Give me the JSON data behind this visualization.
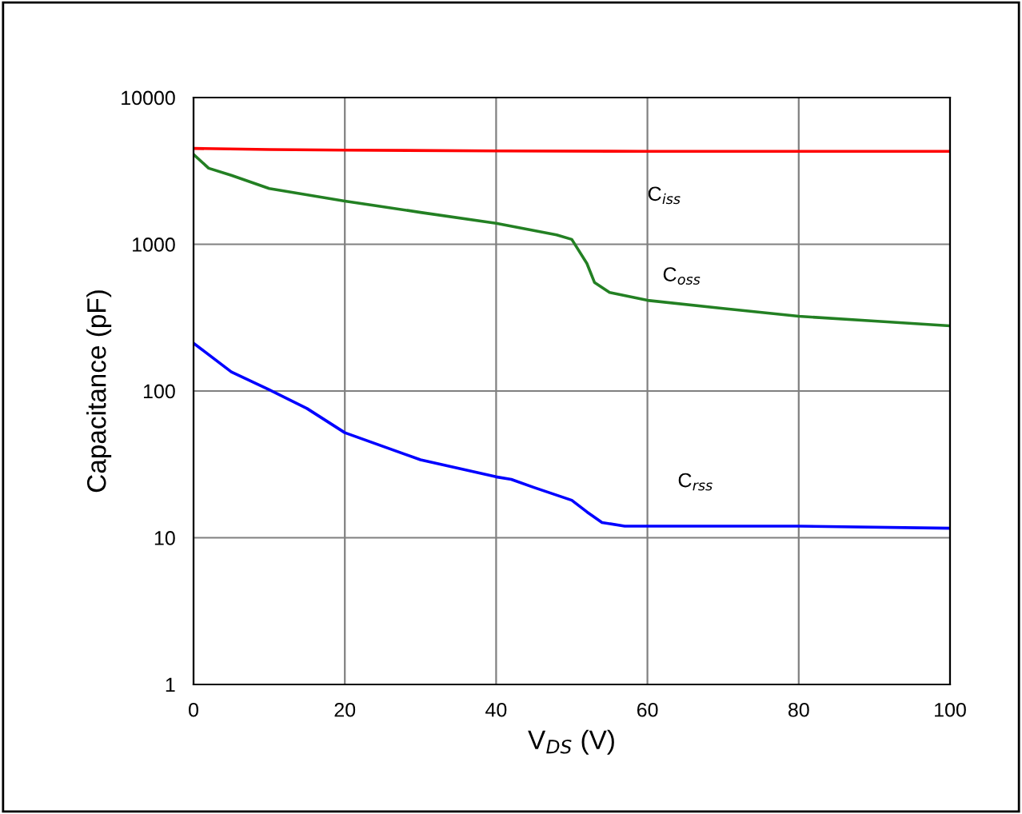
{
  "chart_data": {
    "type": "line",
    "xlabel": "V$_{DS}$ (V)",
    "ylabel": "Capacitance (pF)",
    "log": "y",
    "xlim": [
      0,
      100
    ],
    "ylim": [
      1,
      10000
    ],
    "xticks": [
      0,
      20,
      40,
      60,
      80,
      100
    ],
    "yticks": [
      1,
      10,
      100,
      1000,
      10000
    ],
    "grid": true,
    "marker": "none",
    "line_style": "solid",
    "series": [
      {
        "name": "C$_{iss}$",
        "color": "#ff0000",
        "x": [
          0,
          10,
          20,
          40,
          60,
          80,
          100
        ],
        "values": [
          4500,
          4420,
          4380,
          4330,
          4300,
          4300,
          4300
        ]
      },
      {
        "name": "C$_{oss}$",
        "color": "#238023",
        "x": [
          0,
          2,
          5,
          10,
          20,
          30,
          40,
          48,
          50,
          52,
          53,
          55,
          60,
          70,
          80,
          90,
          100
        ],
        "values": [
          4100,
          3300,
          2950,
          2400,
          1970,
          1650,
          1390,
          1160,
          1080,
          740,
          550,
          470,
          415,
          365,
          323,
          300,
          278
        ]
      },
      {
        "name": "C$_{rss}$",
        "color": "#0000ff",
        "x": [
          0,
          5,
          10,
          15,
          20,
          30,
          40,
          42,
          45,
          50,
          52,
          54,
          57,
          60,
          80,
          100
        ],
        "values": [
          212,
          135,
          102,
          76,
          52,
          34,
          26,
          25,
          22,
          18,
          15,
          12.7,
          12,
          12,
          12,
          11.6
        ]
      }
    ]
  }
}
